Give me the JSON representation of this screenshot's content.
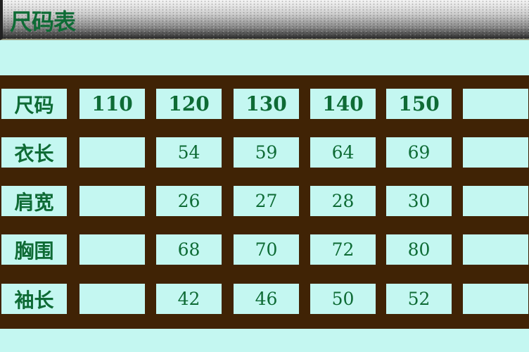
{
  "title": "尺码表",
  "header_row": {
    "label": "尺码",
    "sizes": [
      "110",
      "120",
      "130",
      "140",
      "150",
      ""
    ]
  },
  "rows": [
    {
      "label": "衣长",
      "values": [
        "",
        "54",
        "59",
        "64",
        "69",
        ""
      ]
    },
    {
      "label": "肩宽",
      "values": [
        "",
        "26",
        "27",
        "28",
        "30",
        ""
      ]
    },
    {
      "label": "胸围",
      "values": [
        "",
        "68",
        "70",
        "72",
        "80",
        ""
      ]
    },
    {
      "label": "袖长",
      "values": [
        "",
        "42",
        "46",
        "50",
        "52",
        ""
      ]
    }
  ],
  "colors": {
    "background": "#c4f7f1",
    "grid": "#402305",
    "text": "#0e6b35"
  }
}
